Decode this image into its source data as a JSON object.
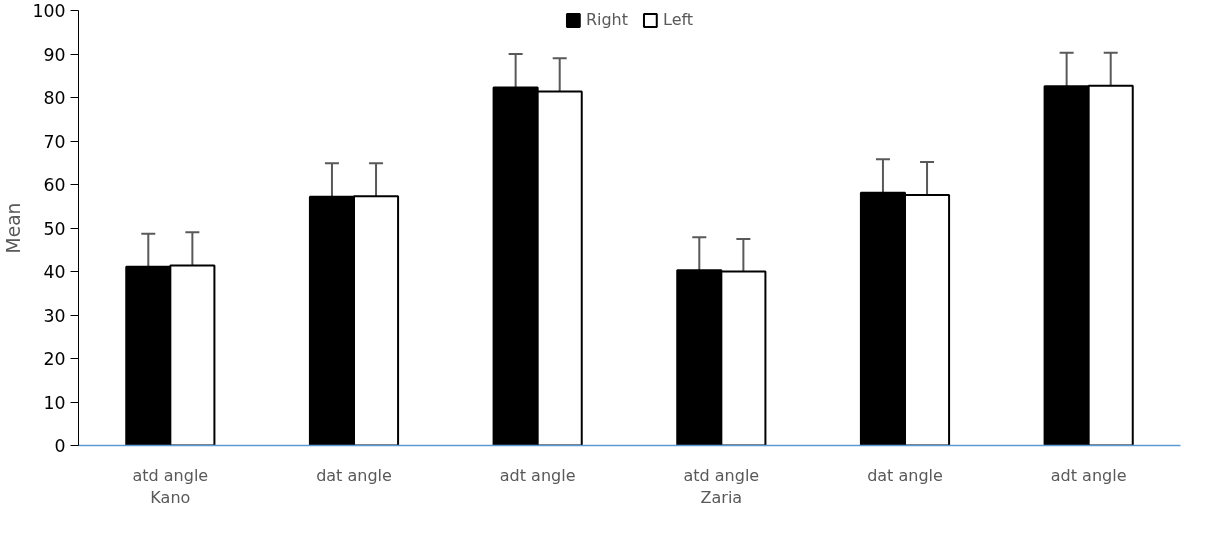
{
  "chart_data": {
    "type": "bar",
    "ylabel": "Mean",
    "categories": [
      "atd angle\nKano",
      "dat angle",
      "adt angle",
      "atd angle\nZaria",
      "dat angle",
      "adt angle"
    ],
    "series": [
      {
        "name": "Right",
        "color": "#000000",
        "values": [
          41.1,
          57.2,
          82.3,
          40.3,
          58.1,
          82.6
        ],
        "errors": [
          7.6,
          7.7,
          7.7,
          7.6,
          7.7,
          7.7
        ]
      },
      {
        "name": "Left",
        "color": "#ffffff",
        "values": [
          41.4,
          57.3,
          81.4,
          40.0,
          57.6,
          82.7
        ],
        "errors": [
          7.6,
          7.6,
          7.6,
          7.5,
          7.6,
          7.6
        ]
      }
    ],
    "ylim": [
      0,
      100
    ],
    "yticks": [
      0,
      10,
      20,
      30,
      40,
      50,
      60,
      70,
      80,
      90,
      100
    ],
    "grid": false,
    "legend": "top"
  }
}
